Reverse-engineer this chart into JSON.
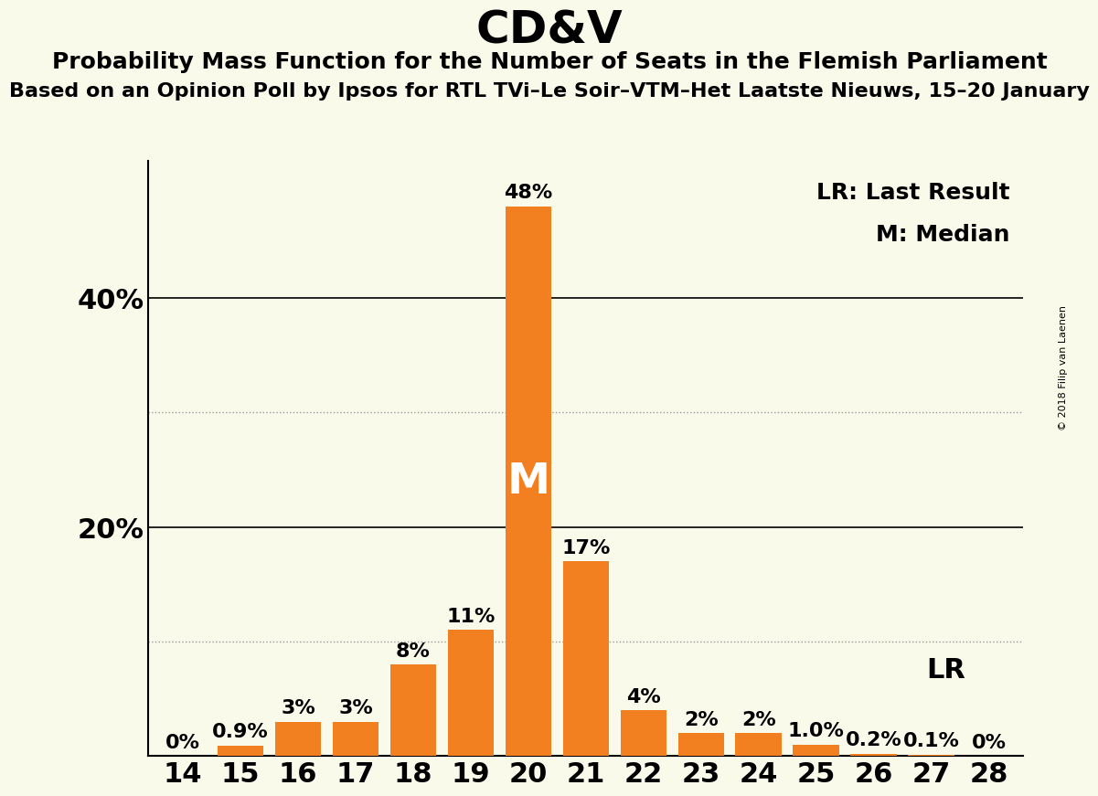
{
  "title": "CD&V",
  "subtitle": "Probability Mass Function for the Number of Seats in the Flemish Parliament",
  "subtitle2": "Based on an Opinion Poll by Ipsos for RTL TVi–Le Soir–VTM–Het Laatste Nieuws, 15–20 January",
  "copyright": "© 2018 Filip van Laenen",
  "seats": [
    14,
    15,
    16,
    17,
    18,
    19,
    20,
    21,
    22,
    23,
    24,
    25,
    26,
    27,
    28
  ],
  "probabilities": [
    0.0,
    0.9,
    3.0,
    3.0,
    8.0,
    11.0,
    48.0,
    17.0,
    4.0,
    2.0,
    2.0,
    1.0,
    0.2,
    0.1,
    0.0
  ],
  "bar_color": "#F28020",
  "background_color": "#FAFAEB",
  "median_seat": 20,
  "lr_seat": 25,
  "ylim": [
    0,
    52
  ],
  "solid_grid_values": [
    20,
    40
  ],
  "dotted_grid_values": [
    10,
    30
  ],
  "bar_labels": [
    "0%",
    "0.9%",
    "3%",
    "3%",
    "8%",
    "11%",
    "48%",
    "17%",
    "4%",
    "2%",
    "2%",
    "1.0%",
    "0.2%",
    "0.1%",
    "0%"
  ],
  "title_fontsize": 36,
  "subtitle_fontsize": 18,
  "subtitle2_fontsize": 16,
  "axis_label_fontsize": 22,
  "bar_label_fontsize": 16,
  "legend_fontsize": 18,
  "median_label": "M",
  "lr_label": "LR",
  "lr_legend": "LR: Last Result",
  "m_legend": "M: Median",
  "ytick_positions": [
    20,
    40
  ],
  "ytick_labels": [
    "20%",
    "40%"
  ]
}
